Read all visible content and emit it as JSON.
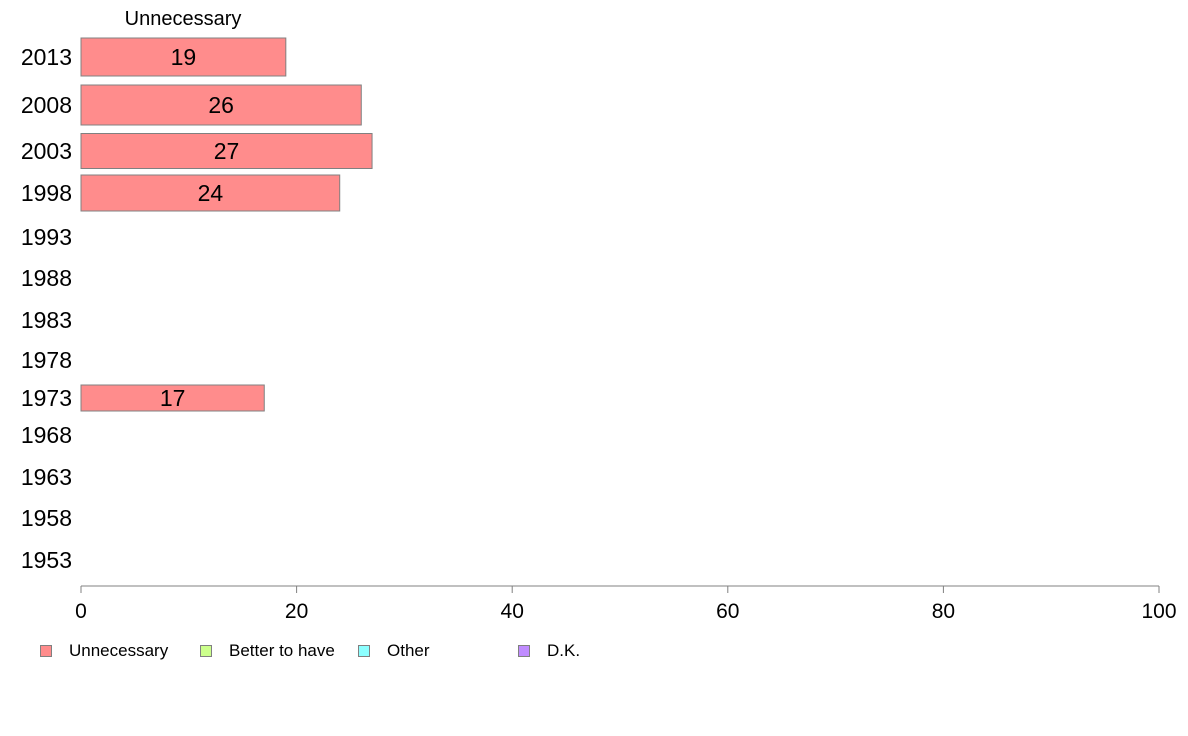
{
  "chart_data": {
    "type": "bar",
    "orientation": "horizontal",
    "stacked": true,
    "series_title": "Unnecessary",
    "categories": [
      "2013",
      "2008",
      "2003",
      "1998",
      "1993",
      "1988",
      "1983",
      "1978",
      "1973",
      "1968",
      "1963",
      "1958",
      "1953"
    ],
    "series": [
      {
        "name": "Unnecessary",
        "color": "#ff8c8c",
        "values": [
          19,
          26,
          27,
          24,
          null,
          null,
          null,
          null,
          17,
          null,
          null,
          null,
          null
        ]
      }
    ],
    "xlim": [
      0,
      100
    ],
    "xticks": [
      "0",
      "20",
      "40",
      "60",
      "80",
      "100"
    ],
    "grid": false,
    "legend": {
      "position": "bottom",
      "items": [
        {
          "label": "Unnecessary",
          "color": "#ff8c8c"
        },
        {
          "label": "Better to have",
          "color": "#ccff8c"
        },
        {
          "label": "Other",
          "color": "#8cffff"
        },
        {
          "label": "D.K.",
          "color": "#c08cff"
        }
      ]
    }
  }
}
